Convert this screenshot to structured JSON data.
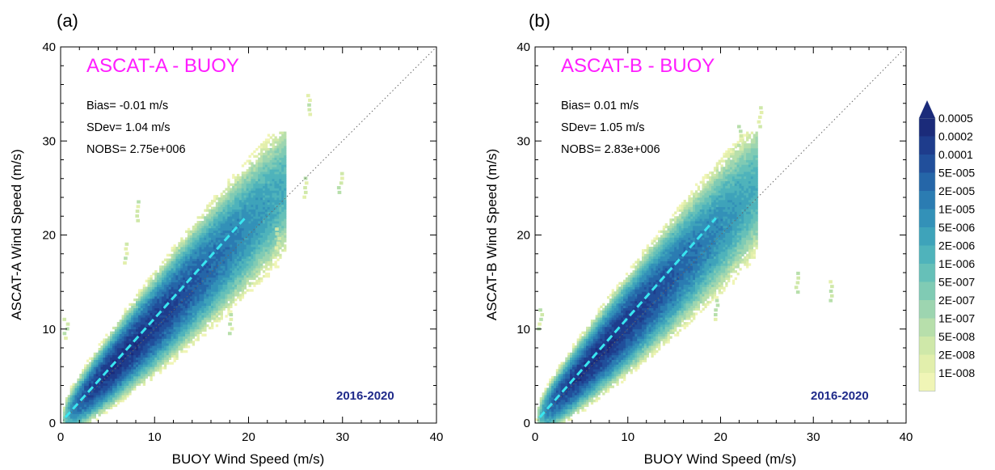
{
  "chart_data": [
    {
      "type": "heatmap",
      "panel_label": "(a)",
      "title": "ASCAT-A - BUOY",
      "xlabel": "BUOY Wind Speed (m/s)",
      "ylabel": "ASCAT-A  Wind Speed (m/s)",
      "xlim": [
        0,
        40
      ],
      "ylim": [
        0,
        40
      ],
      "xticks": [
        "0",
        "10",
        "20",
        "30",
        "40"
      ],
      "yticks": [
        "0",
        "10",
        "20",
        "30",
        "40"
      ],
      "stats": {
        "bias": "Bias= -0.01 m/s",
        "sdev": "SDev= 1.04 m/s",
        "nobs": "NOBS= 2.75e+006"
      },
      "period": "2016-2020",
      "reference_line": "1:1",
      "fit_line": {
        "x": [
          0.5,
          19.8
        ],
        "y": [
          0.6,
          22.0
        ]
      },
      "outliers": [
        [
          23.0,
          19.6
        ],
        [
          26.3,
          33.8
        ],
        [
          26.0,
          25.0
        ],
        [
          29.7,
          25.5
        ],
        [
          18.0,
          10.5
        ],
        [
          8.0,
          22.5
        ],
        [
          6.8,
          18.0
        ],
        [
          0.5,
          10.0
        ]
      ]
    },
    {
      "type": "heatmap",
      "panel_label": "(b)",
      "title": "ASCAT-B - BUOY",
      "xlabel": "BUOY Wind Speed (m/s)",
      "ylabel": "ASCAT-B  Wind Speed (m/s)",
      "xlim": [
        0,
        40
      ],
      "ylim": [
        0,
        40
      ],
      "xticks": [
        "0",
        "10",
        "20",
        "30",
        "40"
      ],
      "yticks": [
        "0",
        "10",
        "20",
        "30",
        "40"
      ],
      "stats": {
        "bias": "Bias=  0.01 m/s",
        "sdev": "SDev= 1.05 m/s",
        "nobs": "NOBS= 2.83e+006"
      },
      "period": "2016-2020",
      "reference_line": "1:1",
      "fit_line": {
        "x": [
          0.5,
          19.5
        ],
        "y": [
          0.6,
          21.8
        ]
      },
      "outliers": [
        [
          28.2,
          14.9
        ],
        [
          31.8,
          14.0
        ],
        [
          24.2,
          32.5
        ],
        [
          22.0,
          30.5
        ],
        [
          19.5,
          12.0
        ],
        [
          0.5,
          11.0
        ]
      ]
    }
  ],
  "colorbar": {
    "labels": [
      "0.0005",
      "0.0002",
      "0.0001",
      "5E-005",
      "2E-005",
      "1E-005",
      "5E-006",
      "2E-006",
      "1E-006",
      "5E-007",
      "2E-007",
      "1E-007",
      "5E-008",
      "2E-008",
      "1E-008"
    ],
    "colors": [
      "#1b2b7a",
      "#1e3c8c",
      "#214f9b",
      "#2566a8",
      "#2b7cb2",
      "#3391b8",
      "#3ea3ba",
      "#4fb3bb",
      "#66c0b8",
      "#80cbb4",
      "#9dd5b0",
      "#b7dfab",
      "#cfe8a9",
      "#e2efac",
      "#f0f5b6"
    ]
  },
  "colors": {
    "title": "#ff1cff",
    "period": "#1f2a8a",
    "fit_line": "#39e6f0",
    "one_to_one": "#666666"
  }
}
